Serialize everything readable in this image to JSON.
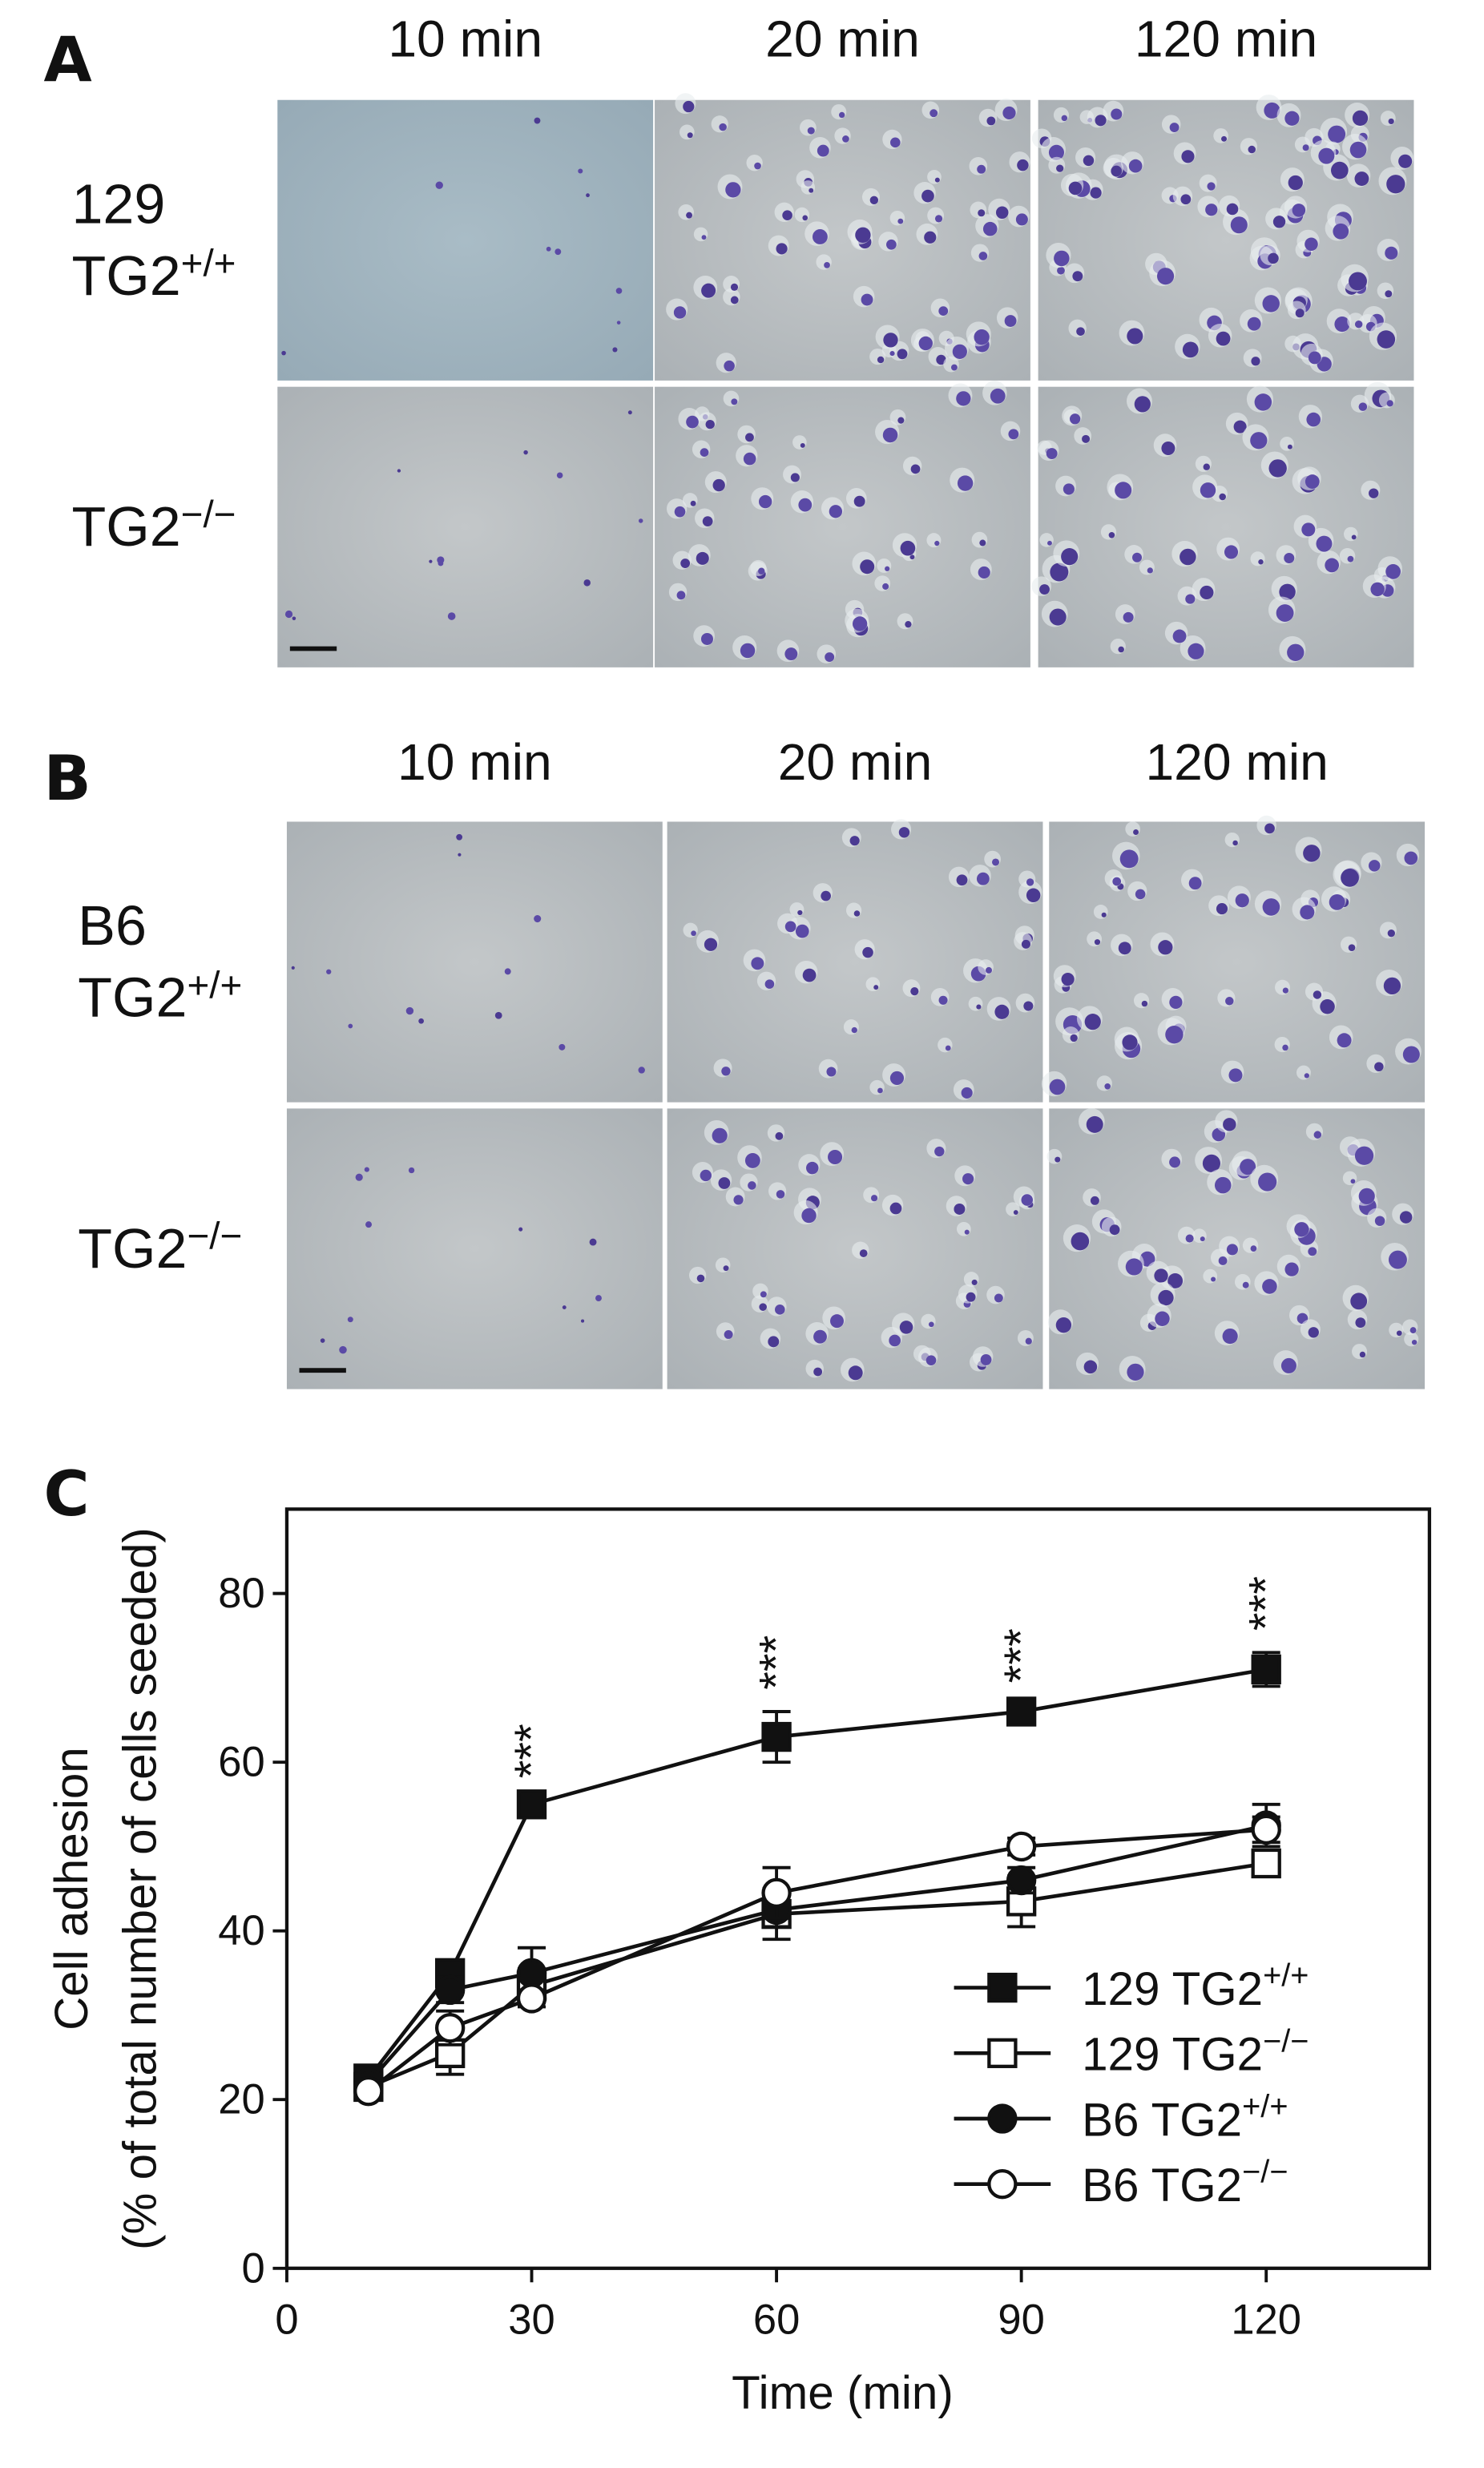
{
  "panels": [
    {
      "label": "A",
      "columns": [
        "10 min",
        "20 min",
        "120 min"
      ],
      "rows": [
        [
          "129",
          "TG2+/+"
        ],
        [
          "TG2−/−"
        ]
      ]
    },
    {
      "label": "B",
      "columns": [
        "10 min",
        "20 min",
        "120 min"
      ],
      "rows": [
        [
          "B6",
          "TG2+/+"
        ],
        [
          "TG2−/−"
        ]
      ]
    }
  ],
  "chart_data": {
    "type": "line",
    "panel_label": "C",
    "xlabel": "Time (min)",
    "ylabel": [
      "Cell adhesion",
      "(% of total number of cells seeded)"
    ],
    "x": [
      10,
      20,
      30,
      60,
      90,
      120
    ],
    "xlim": [
      0,
      140
    ],
    "xticks": [
      0,
      30,
      60,
      90,
      120
    ],
    "ylim": [
      0,
      90
    ],
    "yticks": [
      0,
      20,
      40,
      60,
      80
    ],
    "legend": "lower right",
    "series": [
      {
        "name": "129 TG2+/+",
        "color": "#111111",
        "marker": "square",
        "filled": true,
        "values": [
          22.5,
          35,
          55,
          63,
          66,
          71
        ],
        "errors": [
          1,
          1.5,
          0.5,
          3,
          0.8,
          2
        ]
      },
      {
        "name": "129 TG2−/−",
        "color": "#111111",
        "marker": "square",
        "filled": false,
        "values": [
          21.5,
          25.5,
          33.5,
          42,
          43.5,
          48
        ],
        "errors": [
          1,
          2.5,
          2,
          3,
          3,
          1.5
        ]
      },
      {
        "name": "B6 TG2+/+",
        "color": "#111111",
        "marker": "circle",
        "filled": true,
        "values": [
          22,
          33,
          35,
          42.5,
          46,
          52.5
        ],
        "errors": [
          1,
          1.5,
          3,
          2,
          1.5,
          2.5
        ]
      },
      {
        "name": "B6 TG2−/−",
        "color": "#111111",
        "marker": "circle",
        "filled": false,
        "values": [
          21,
          28.5,
          32,
          44.5,
          50,
          52
        ],
        "errors": [
          1,
          2,
          1,
          3,
          1,
          1.5
        ]
      }
    ],
    "annotations": [
      {
        "x": 30,
        "text": "***"
      },
      {
        "x": 60,
        "text": "***"
      },
      {
        "x": 90,
        "text": "***"
      },
      {
        "x": 120,
        "text": "***"
      }
    ]
  }
}
